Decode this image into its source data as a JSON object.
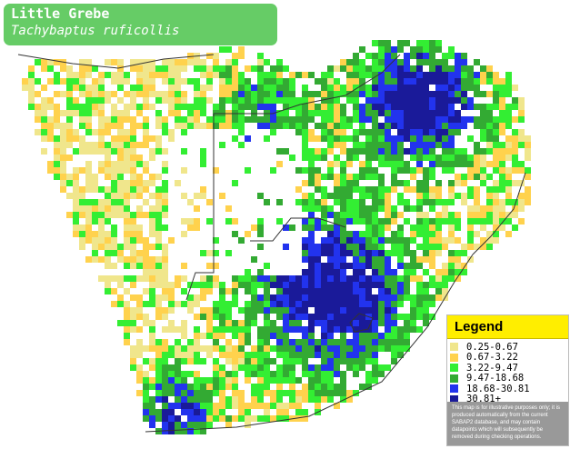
{
  "title": {
    "common_name": "Little Grebe",
    "scientific_name": "Tachybaptus ruficollis"
  },
  "legend": {
    "heading": "Legend",
    "items": [
      {
        "label": "0.25-0.67",
        "color": "#f0e68c"
      },
      {
        "label": "0.67-3.22",
        "color": "#ffd24d"
      },
      {
        "label": "3.22-9.47",
        "color": "#33ee33"
      },
      {
        "label": "9.47-18.68",
        "color": "#33aa33"
      },
      {
        "label": "18.68-30.81",
        "color": "#2233ee"
      },
      {
        "label": "30.81+",
        "color": "#1a1a99"
      }
    ],
    "disclaimer": "This map is for illustrative purposes only; it is produced automatically from the current SABAP2 database, and may contain datapoints which will subsequently be removed during checking operations."
  },
  "map_colors": {
    "land": "#ffffff",
    "border": "#333333",
    "coast": "#555555"
  }
}
